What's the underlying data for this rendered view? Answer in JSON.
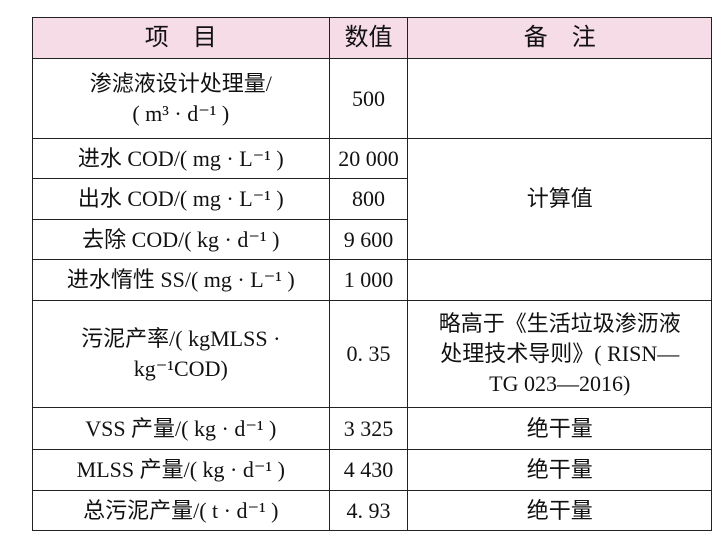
{
  "table": {
    "header": [
      "项　目",
      "数值",
      "备　注"
    ],
    "rows": [
      {
        "item": [
          "渗滤液设计处理量/",
          "( m³ · d⁻¹ )"
        ],
        "value": "500"
      },
      {
        "item": [
          "进水 COD/( mg · L⁻¹ )"
        ],
        "value": "20 000",
        "note": [
          "计算值"
        ]
      },
      {
        "item": [
          "出水 COD/( mg · L⁻¹ )"
        ],
        "value": "800"
      },
      {
        "item": [
          "去除 COD/( kg · d⁻¹ )"
        ],
        "value": "9 600"
      },
      {
        "item": [
          "进水惰性 SS/( mg · L⁻¹ )"
        ],
        "value": "1 000"
      },
      {
        "item": [
          "污泥产率/( kgMLSS ·",
          "kg⁻¹COD)"
        ],
        "value": "0. 35",
        "note": [
          "略高于《生活垃圾渗沥液",
          "处理技术导则》( RISN—",
          "TG 023—2016)"
        ]
      },
      {
        "item": [
          "VSS 产量/( kg · d⁻¹ )"
        ],
        "value": "3 325",
        "note": [
          "绝干量"
        ]
      },
      {
        "item": [
          "MLSS 产量/( kg · d⁻¹ )"
        ],
        "value": "4 430",
        "note": [
          "绝干量"
        ]
      },
      {
        "item": [
          "总污泥产量/( t · d⁻¹ )"
        ],
        "value": "4. 93",
        "note": [
          "绝干量"
        ]
      }
    ]
  }
}
